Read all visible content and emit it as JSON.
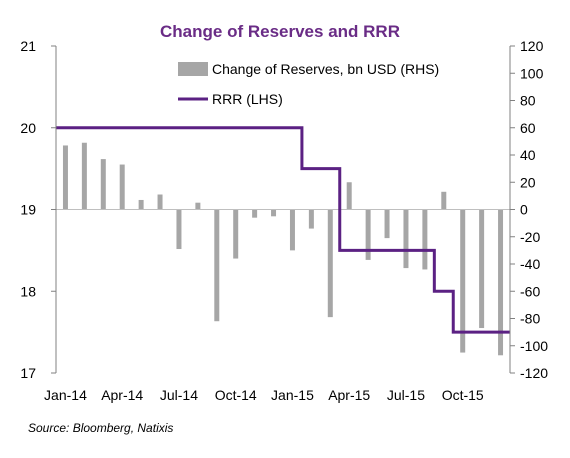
{
  "chart_data": {
    "type": "bar+line",
    "title": "Change of Reserves and RRR",
    "source": "Source: Bloomberg, Natixis",
    "x_tick_labels": [
      "Jan-14",
      "Apr-14",
      "Jul-14",
      "Oct-14",
      "Jan-15",
      "Apr-15",
      "Jul-15",
      "Oct-15"
    ],
    "y_left": {
      "min": 17,
      "max": 21,
      "ticks": [
        "17",
        "18",
        "19",
        "20",
        "21"
      ]
    },
    "y_right": {
      "min": -120,
      "max": 120,
      "ticks": [
        "-120",
        "-100",
        "-80",
        "-60",
        "-40",
        "-20",
        "0",
        "20",
        "40",
        "60",
        "80",
        "100",
        "120"
      ]
    },
    "months": [
      "2014-01",
      "2014-02",
      "2014-03",
      "2014-04",
      "2014-05",
      "2014-06",
      "2014-07",
      "2014-08",
      "2014-09",
      "2014-10",
      "2014-11",
      "2014-12",
      "2015-01",
      "2015-02",
      "2015-03",
      "2015-04",
      "2015-05",
      "2015-06",
      "2015-07",
      "2015-08",
      "2015-09",
      "2015-10",
      "2015-11",
      "2015-12"
    ],
    "series": [
      {
        "name": "Change of Reserves, bn USD (RHS)",
        "type": "bar",
        "axis": "right",
        "color": "#a6a6a6",
        "values": [
          47,
          49,
          37,
          33,
          7,
          11,
          -29,
          5,
          -82,
          -36,
          -6,
          -5,
          -30,
          -14,
          -79,
          20,
          -37,
          -21,
          -43,
          -44,
          13,
          -105,
          -87,
          -107
        ]
      },
      {
        "name": "RRR (LHS)",
        "type": "step-line",
        "axis": "left",
        "color": "#5b2183",
        "values": [
          20,
          20,
          20,
          20,
          20,
          20,
          20,
          20,
          20,
          20,
          20,
          20,
          20,
          19.5,
          19.5,
          18.5,
          18.5,
          18.5,
          18.5,
          18.5,
          18,
          17.5,
          17.5,
          17.5
        ]
      }
    ],
    "legend_position": "top-right",
    "grid": false
  }
}
